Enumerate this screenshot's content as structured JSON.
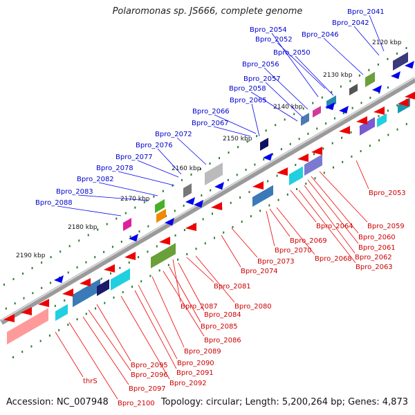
{
  "title": "Polaromonas sp. JS666, complete genome",
  "footer": {
    "accession": "Accession: NC_007948",
    "summary": "Topology: circular; Length: 5,200,264 bp; Genes: 4,873"
  },
  "colors": {
    "forward_gene": "#0000ee",
    "reverse_gene": "#ee0000",
    "forward_label": "#0000cc",
    "reverse_label": "#cc0000",
    "tick": "#2a7a2a",
    "backbone": "#888888"
  },
  "scale_labels": [
    "2120 kbp",
    "2130 kbp",
    "2140 kbp",
    "2150 kbp",
    "2160 kbp",
    "2170 kbp",
    "2180 kbp",
    "2190 kbp"
  ],
  "forward_labels": [
    "Bpro_2041",
    "Bpro_2042",
    "Bpro_2046",
    "Bpro_2050",
    "Bpro_2052",
    "Bpro_2054",
    "Bpro_2056",
    "Bpro_2057",
    "Bpro_2058",
    "Bpro_2065",
    "Bpro_2066",
    "Bpro_2067",
    "Bpro_2072",
    "Bpro_2076",
    "Bpro_2077",
    "Bpro_2078",
    "Bpro_2082",
    "Bpro_2083",
    "Bpro_2088"
  ],
  "reverse_labels": [
    "Bpro_2053",
    "Bpro_2059",
    "Bpro_2060",
    "Bpro_2061",
    "Bpro_2062",
    "Bpro_2063",
    "Bpro_2064",
    "Bpro_2068",
    "Bpro_2069",
    "Bpro_2070",
    "Bpro_2073",
    "Bpro_2074",
    "Bpro_2080",
    "Bpro_2081",
    "Bpro_2084",
    "Bpro_2085",
    "Bpro_2086",
    "Bpro_2087",
    "Bpro_2089",
    "Bpro_2090",
    "Bpro_2091",
    "Bpro_2092",
    "Bpro_2095",
    "Bpro_2096",
    "Bpro_2097",
    "Bpro_2100",
    "thrS"
  ]
}
